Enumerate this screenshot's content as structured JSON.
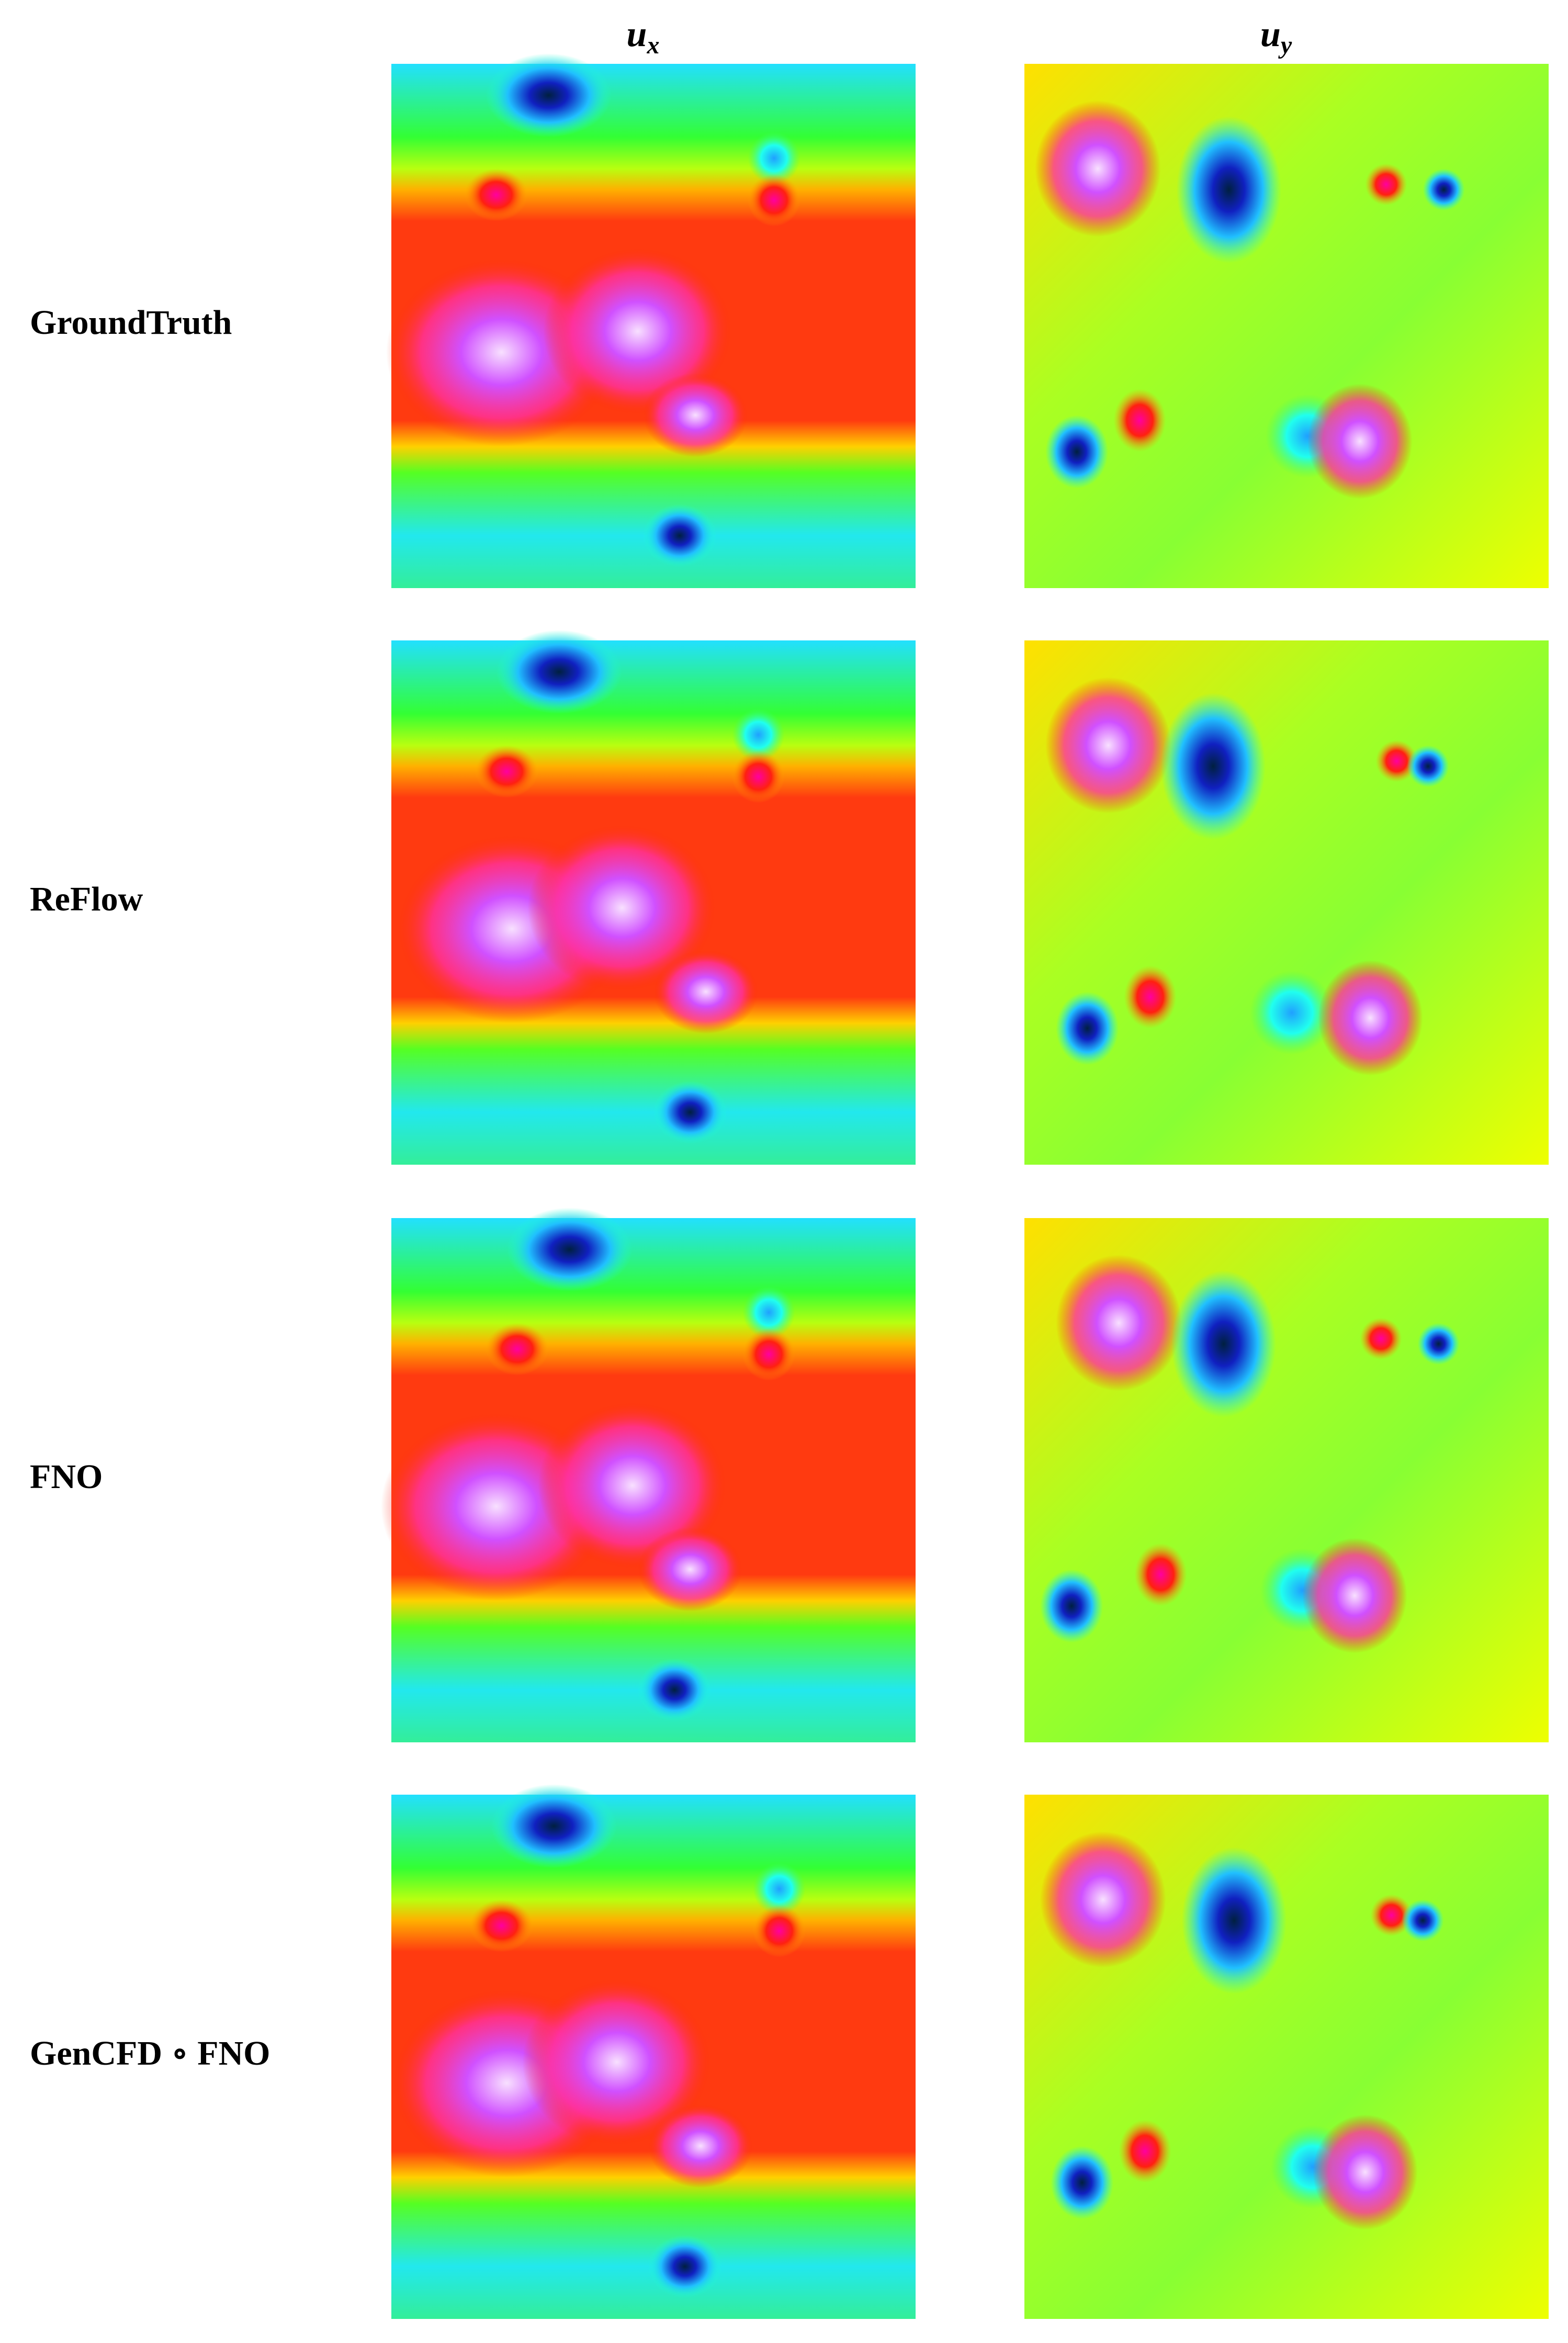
{
  "figure": {
    "column_headers": [
      {
        "symbol": "u",
        "subscript": "x"
      },
      {
        "symbol": "u",
        "subscript": "y"
      }
    ],
    "row_labels": [
      "GroundTruth",
      "ReFlow",
      "FNO",
      "GenCFD ∘ FNO"
    ]
  }
}
